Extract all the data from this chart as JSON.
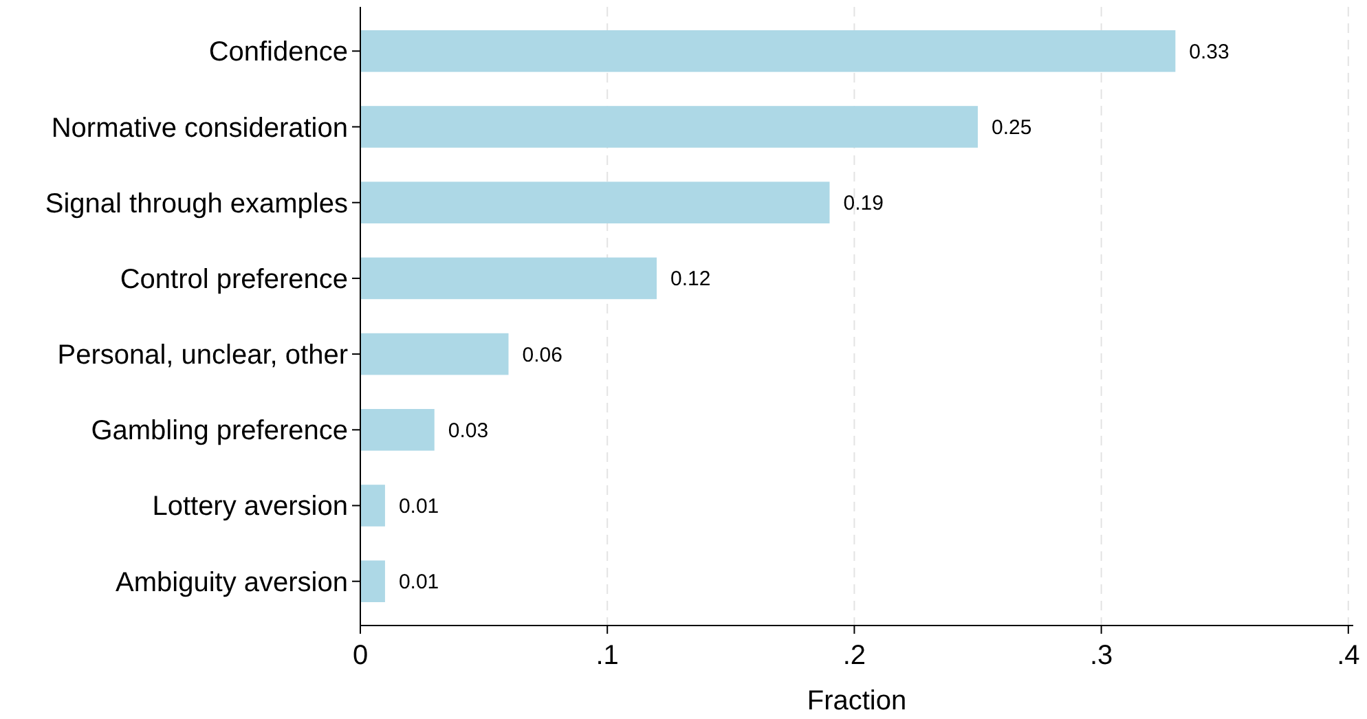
{
  "chart_data": {
    "type": "bar",
    "orientation": "horizontal",
    "xlabel": "Fraction",
    "categories": [
      "Confidence",
      "Normative consideration",
      "Signal through examples",
      "Control preference",
      "Personal, unclear, other",
      "Gambling preference",
      "Lottery aversion",
      "Ambiguity aversion"
    ],
    "values": [
      0.33,
      0.25,
      0.19,
      0.12,
      0.06,
      0.03,
      0.01,
      0.01
    ],
    "color": "#add8e6",
    "data_labels": true,
    "grid": "x",
    "xlim": [
      0,
      0.402
    ],
    "xticks": [
      0,
      {
        "value": 0.1,
        "label": ".1"
      },
      {
        "value": 0.2,
        "label": ".2"
      },
      {
        "value": 0.3,
        "label": ".3"
      },
      {
        "value": 0.4,
        "label": ".4"
      }
    ]
  }
}
